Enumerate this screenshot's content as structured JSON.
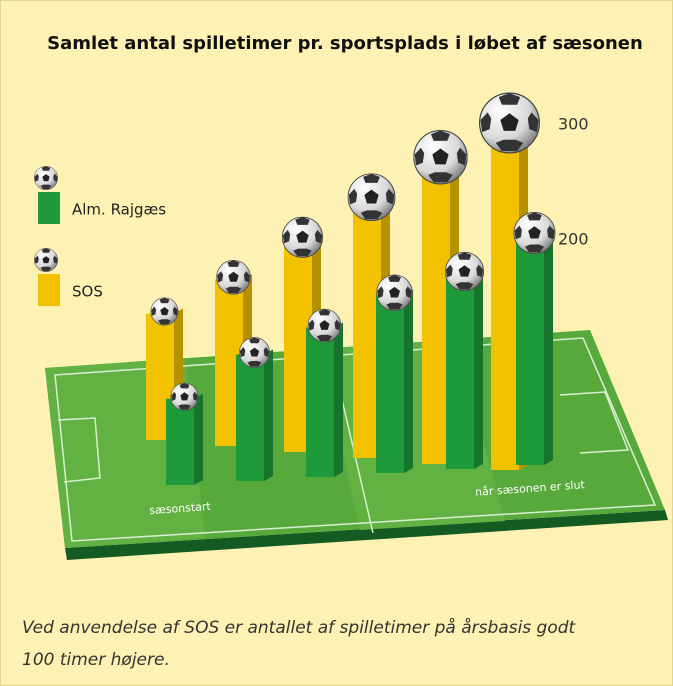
{
  "chart_data": {
    "type": "bar3d",
    "title": "Samlet antal spilletimer pr. sportsplads i løbet af sæsonen",
    "categories": [
      "sæsonstart",
      null,
      null,
      null,
      null,
      "når sæsonen er slut"
    ],
    "series": [
      {
        "name": "SOS",
        "color": "#f2c200",
        "values": [
          110,
          145,
          185,
          225,
          265,
          300
        ]
      },
      {
        "name": "Alm. Rajgæs",
        "color": "#1f9a3b",
        "values": [
          75,
          110,
          130,
          155,
          170,
          200
        ]
      }
    ],
    "ylim": [
      0,
      300
    ],
    "yticks": [
      200,
      300
    ],
    "caption": [
      "Ved anvendelse af SOS er antallet af spilletimer på årsbasis godt",
      "100 timer højere."
    ]
  }
}
